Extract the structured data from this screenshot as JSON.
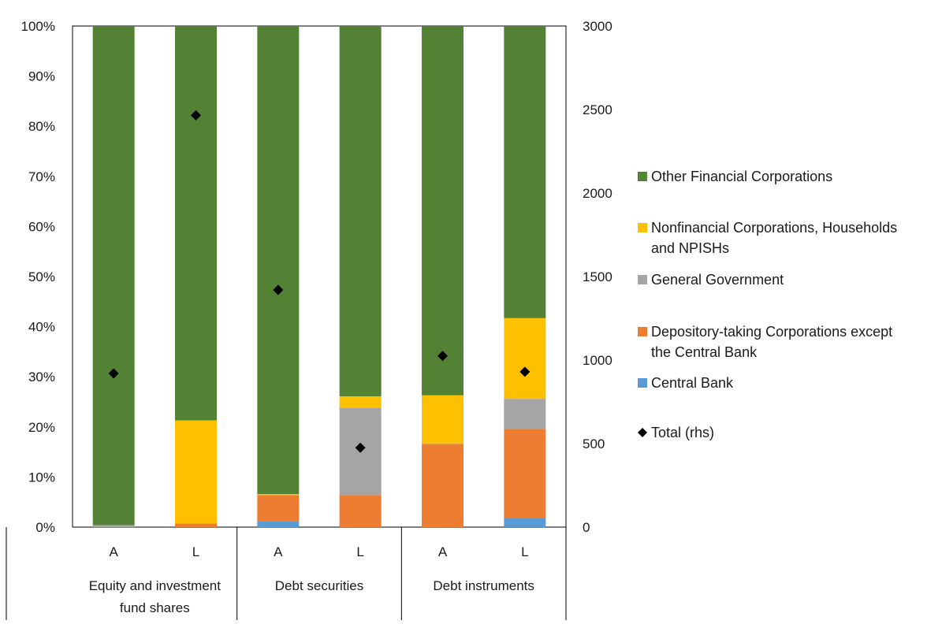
{
  "chart_data": {
    "type": "bar",
    "stacked": "percent",
    "groups": [
      {
        "label": "Equity and investment fund shares",
        "lines": [
          "Equity and investment",
          "fund shares"
        ]
      },
      {
        "label": "Debt securities",
        "lines": [
          "Debt securities"
        ]
      },
      {
        "label": "Debt instruments",
        "lines": [
          "Debt instruments"
        ]
      }
    ],
    "categories": [
      "A",
      "L",
      "A",
      "L",
      "A",
      "L"
    ],
    "category_group": [
      0,
      0,
      1,
      1,
      2,
      2
    ],
    "series": [
      {
        "name": "Central Bank",
        "color": "#5b9bd5",
        "values": [
          0,
          0,
          1.2,
          0,
          0,
          1.8
        ]
      },
      {
        "name": "Depository-taking Corporations except the Central Bank",
        "color": "#ed7d31",
        "values": [
          0,
          0.7,
          5.2,
          6.4,
          16.5,
          17.8
        ]
      },
      {
        "name": "General Government",
        "color": "#a5a5a5",
        "values": [
          0.4,
          0,
          0,
          17.4,
          0.2,
          6.0
        ]
      },
      {
        "name": "Nonfinancial Corporations, Households and NPISHs",
        "color": "#ffc000",
        "values": [
          0,
          20.6,
          0.2,
          2.3,
          9.6,
          16.1
        ]
      },
      {
        "name": "Other Financial Corporations",
        "color": "#548235",
        "values": [
          99.6,
          78.7,
          93.4,
          73.9,
          73.7,
          58.3
        ]
      }
    ],
    "total": {
      "name": "Total (rhs)",
      "color": "#000000",
      "values": [
        920,
        2465,
        1420,
        475,
        1025,
        930
      ]
    },
    "y_left": {
      "ticks": [
        "0%",
        "10%",
        "20%",
        "30%",
        "40%",
        "50%",
        "60%",
        "70%",
        "80%",
        "90%",
        "100%"
      ],
      "ylim": [
        0,
        100
      ]
    },
    "y_right": {
      "ticks": [
        "0",
        "500",
        "1000",
        "1500",
        "2000",
        "2500",
        "3000"
      ],
      "ylim": [
        0,
        3000
      ]
    },
    "legend_order": [
      {
        "name": "Other Financial Corporations",
        "lines": [
          "Other Financial Corporations"
        ],
        "color": "#548235",
        "marker": "square"
      },
      {
        "name": "Nonfinancial Corporations, Households and NPISHs",
        "lines": [
          "Nonfinancial Corporations, Households",
          "and NPISHs"
        ],
        "color": "#ffc000",
        "marker": "square"
      },
      {
        "name": "General Government",
        "lines": [
          "General Government"
        ],
        "color": "#a5a5a5",
        "marker": "square"
      },
      {
        "name": "Depository-taking Corporations except the Central Bank",
        "lines": [
          "Depository-taking Corporations except",
          "the Central Bank"
        ],
        "color": "#ed7d31",
        "marker": "square"
      },
      {
        "name": "Central Bank",
        "lines": [
          "Central Bank"
        ],
        "color": "#5b9bd5",
        "marker": "square"
      },
      {
        "name": "Total (rhs)",
        "lines": [
          "Total (rhs)"
        ],
        "color": "#000000",
        "marker": "diamond"
      }
    ],
    "legend_position": "right",
    "grid": false
  }
}
